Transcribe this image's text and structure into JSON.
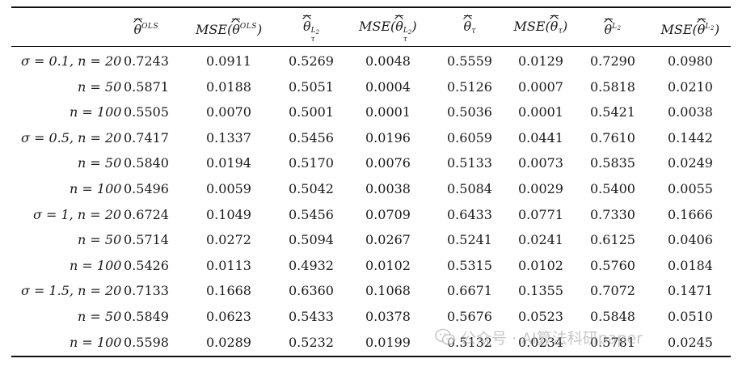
{
  "table": {
    "headers": [
      {
        "key": "h1",
        "base": "θ",
        "hat": true,
        "sup": "OLS",
        "sub": "",
        "wrap": ""
      },
      {
        "key": "h2",
        "base": "θ",
        "hat": true,
        "sup": "OLS",
        "sub": "",
        "wrap": "MSE"
      },
      {
        "key": "h3",
        "base": "θ",
        "hat": true,
        "sup": "L2",
        "sub": "τ",
        "wrap": ""
      },
      {
        "key": "h4",
        "base": "θ",
        "hat": true,
        "sup": "L2",
        "sub": "τ",
        "wrap": "MSE"
      },
      {
        "key": "h5",
        "base": "θ",
        "hat": true,
        "sup": "",
        "sub": "τ",
        "wrap": ""
      },
      {
        "key": "h6",
        "base": "θ",
        "hat": true,
        "sup": "",
        "sub": "τ",
        "wrap": "MSE"
      },
      {
        "key": "h7",
        "base": "θ",
        "hat": true,
        "sup": "L2",
        "sub": "",
        "wrap": ""
      },
      {
        "key": "h8",
        "base": "θ",
        "hat": true,
        "sup": "L2",
        "sub": "",
        "wrap": "MSE"
      }
    ],
    "rows": [
      {
        "label": "σ = 0.1, n = 20",
        "values": [
          "0.7243",
          "0.0911",
          "0.5269",
          "0.0048",
          "0.5559",
          "0.0129",
          "0.7290",
          "0.0980"
        ]
      },
      {
        "label": "n = 50",
        "values": [
          "0.5871",
          "0.0188",
          "0.5051",
          "0.0004",
          "0.5126",
          "0.0007",
          "0.5818",
          "0.0210"
        ]
      },
      {
        "label": "n = 100",
        "values": [
          "0.5505",
          "0.0070",
          "0.5001",
          "0.0001",
          "0.5036",
          "0.0001",
          "0.5421",
          "0.0038"
        ]
      },
      {
        "label": "σ = 0.5, n = 20",
        "values": [
          "0.7417",
          "0.1337",
          "0.5456",
          "0.0196",
          "0.6059",
          "0.0441",
          "0.7610",
          "0.1442"
        ]
      },
      {
        "label": "n = 50",
        "values": [
          "0.5840",
          "0.0194",
          "0.5170",
          "0.0076",
          "0.5133",
          "0.0073",
          "0.5835",
          "0.0249"
        ]
      },
      {
        "label": "n = 100",
        "values": [
          "0.5496",
          "0.0059",
          "0.5042",
          "0.0038",
          "0.5084",
          "0.0029",
          "0.5400",
          "0.0055"
        ]
      },
      {
        "label": "σ = 1, n = 20",
        "values": [
          "0.6724",
          "0.1049",
          "0.5456",
          "0.0709",
          "0.6433",
          "0.0771",
          "0.7330",
          "0.1666"
        ]
      },
      {
        "label": "n = 50",
        "values": [
          "0.5714",
          "0.0272",
          "0.5094",
          "0.0267",
          "0.5241",
          "0.0241",
          "0.6125",
          "0.0406"
        ]
      },
      {
        "label": "n = 100",
        "values": [
          "0.5426",
          "0.0113",
          "0.4932",
          "0.0102",
          "0.5315",
          "0.0102",
          "0.5760",
          "0.0184"
        ]
      },
      {
        "label": "σ = 1.5, n = 20",
        "values": [
          "0.7133",
          "0.1668",
          "0.6360",
          "0.1068",
          "0.6671",
          "0.1355",
          "0.7072",
          "0.1471"
        ]
      },
      {
        "label": "n = 50",
        "values": [
          "0.5849",
          "0.0623",
          "0.5433",
          "0.0378",
          "0.5676",
          "0.0523",
          "0.5848",
          "0.0510"
        ]
      },
      {
        "label": "n = 100",
        "values": [
          "0.5598",
          "0.0289",
          "0.5232",
          "0.0199",
          "0.5132",
          "0.0234",
          "0.5781",
          "0.0245"
        ]
      }
    ]
  },
  "watermark": {
    "text": "公众号 · AI算法科研paper",
    "icon": "wechat-icon"
  }
}
